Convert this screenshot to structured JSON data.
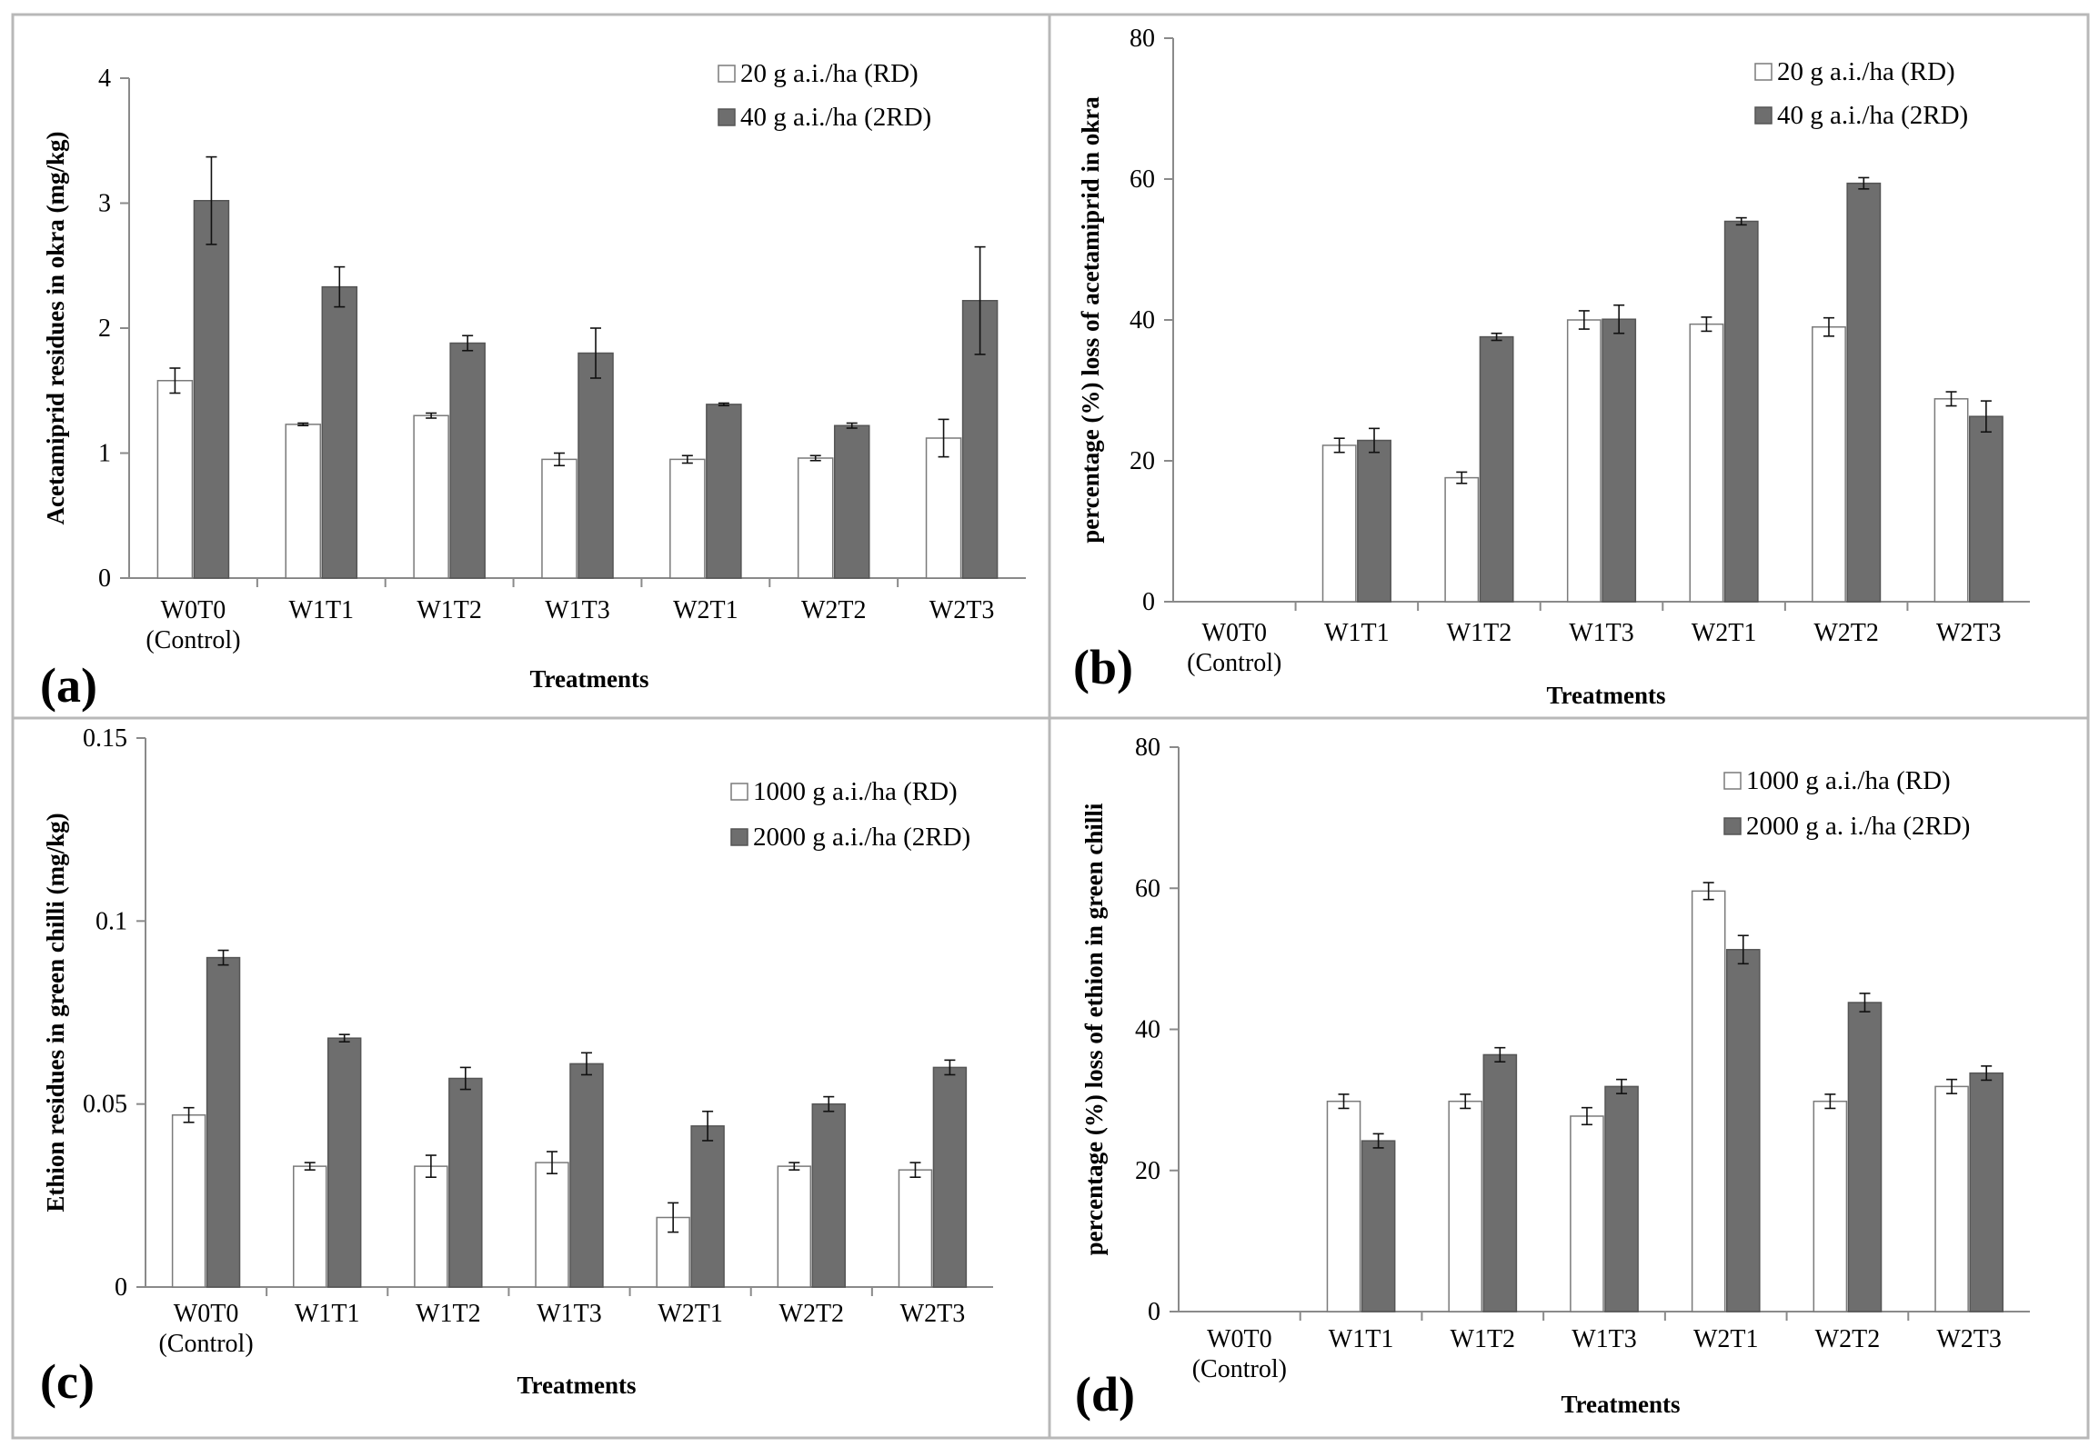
{
  "chart_data": [
    {
      "panel": "(a)",
      "type": "bar",
      "categories": [
        "W0T0\n(Control)",
        "W1T1",
        "W1T2",
        "W1T3",
        "W2T1",
        "W2T2",
        "W2T3"
      ],
      "ylabel": "Acetamiprid residues in okra (mg/kg)",
      "xlabel": "Treatments",
      "ylim": [
        0,
        4
      ],
      "yticks": [
        0,
        1,
        2,
        3,
        4
      ],
      "tick_labels": [
        "0",
        "1",
        "2",
        "3",
        "4"
      ],
      "series": [
        {
          "name": "20 g a.i./ha (RD)",
          "color": "#ffffff",
          "values": [
            1.58,
            1.23,
            1.3,
            0.95,
            0.95,
            0.96,
            1.12
          ],
          "errors": [
            0.1,
            0.01,
            0.02,
            0.05,
            0.03,
            0.02,
            0.15
          ]
        },
        {
          "name": "40 g a.i./ha (2RD)",
          "color": "#6e6e6e",
          "values": [
            3.02,
            2.33,
            1.88,
            1.8,
            1.39,
            1.22,
            2.22
          ],
          "errors": [
            0.35,
            0.16,
            0.06,
            0.2,
            0.01,
            0.02,
            0.43
          ]
        }
      ]
    },
    {
      "panel": "(b)",
      "type": "bar",
      "categories": [
        "W0T0\n(Control)",
        "W1T1",
        "W1T2",
        "W1T3",
        "W2T1",
        "W2T2",
        "W2T3"
      ],
      "ylabel": "percentage (%) loss of acetamiprid in okra",
      "xlabel": "Treatments",
      "ylim": [
        0,
        80
      ],
      "yticks": [
        0,
        20,
        40,
        60,
        80
      ],
      "tick_labels": [
        "0",
        "20",
        "40",
        "60",
        "80"
      ],
      "series": [
        {
          "name": "20 g a.i./ha  (RD)",
          "color": "#ffffff",
          "values": [
            0,
            22.2,
            17.6,
            40.0,
            39.4,
            39.0,
            28.8
          ],
          "errors": [
            0,
            1.0,
            0.8,
            1.3,
            1.0,
            1.3,
            1.0
          ]
        },
        {
          "name": "40 g a.i./ha (2RD)",
          "color": "#6e6e6e",
          "values": [
            0,
            22.9,
            37.6,
            40.1,
            54.0,
            59.4,
            26.3
          ],
          "errors": [
            0,
            1.7,
            0.5,
            2.0,
            0.5,
            0.8,
            2.2
          ]
        }
      ]
    },
    {
      "panel": "(c)",
      "type": "bar",
      "categories": [
        "W0T0\n(Control)",
        "W1T1",
        "W1T2",
        "W1T3",
        "W2T1",
        "W2T2",
        "W2T3"
      ],
      "ylabel": "Ethion residues in green chilli (mg/kg)",
      "xlabel": "Treatments",
      "ylim": [
        0,
        0.15
      ],
      "yticks": [
        0,
        0.05,
        0.1,
        0.15
      ],
      "tick_labels": [
        "0",
        "0.05",
        "0.1",
        "0.15"
      ],
      "series": [
        {
          "name": "1000 g a.i./ha (RD)",
          "color": "#ffffff",
          "values": [
            0.047,
            0.033,
            0.033,
            0.034,
            0.019,
            0.033,
            0.032
          ],
          "errors": [
            0.002,
            0.001,
            0.003,
            0.003,
            0.004,
            0.001,
            0.002
          ]
        },
        {
          "name": "2000 g a.i./ha (2RD)",
          "color": "#6e6e6e",
          "values": [
            0.09,
            0.068,
            0.057,
            0.061,
            0.044,
            0.05,
            0.06
          ],
          "errors": [
            0.002,
            0.001,
            0.003,
            0.003,
            0.004,
            0.002,
            0.002
          ]
        }
      ]
    },
    {
      "panel": "(d)",
      "type": "bar",
      "categories": [
        "W0T0\n(Control)",
        "W1T1",
        "W1T2",
        "W1T3",
        "W2T1",
        "W2T2",
        "W2T3"
      ],
      "ylabel": "percentage (%) loss of ethion in green chilli",
      "xlabel": "Treatments",
      "ylim": [
        0,
        80
      ],
      "yticks": [
        0,
        20,
        40,
        60,
        80
      ],
      "tick_labels": [
        "0",
        "20",
        "40",
        "60",
        "80"
      ],
      "series": [
        {
          "name": "1000 g a.i./ha (RD)",
          "color": "#ffffff",
          "values": [
            0,
            29.8,
            29.8,
            27.7,
            59.6,
            29.8,
            31.9
          ],
          "errors": [
            0,
            1.0,
            1.0,
            1.2,
            1.2,
            1.0,
            1.0
          ]
        },
        {
          "name": "2000 g a. i./ha (2RD)",
          "color": "#6e6e6e",
          "values": [
            0,
            24.2,
            36.4,
            31.9,
            51.3,
            43.8,
            33.8
          ],
          "errors": [
            0,
            1.0,
            1.0,
            1.0,
            2.0,
            1.3,
            1.0
          ]
        }
      ]
    }
  ]
}
